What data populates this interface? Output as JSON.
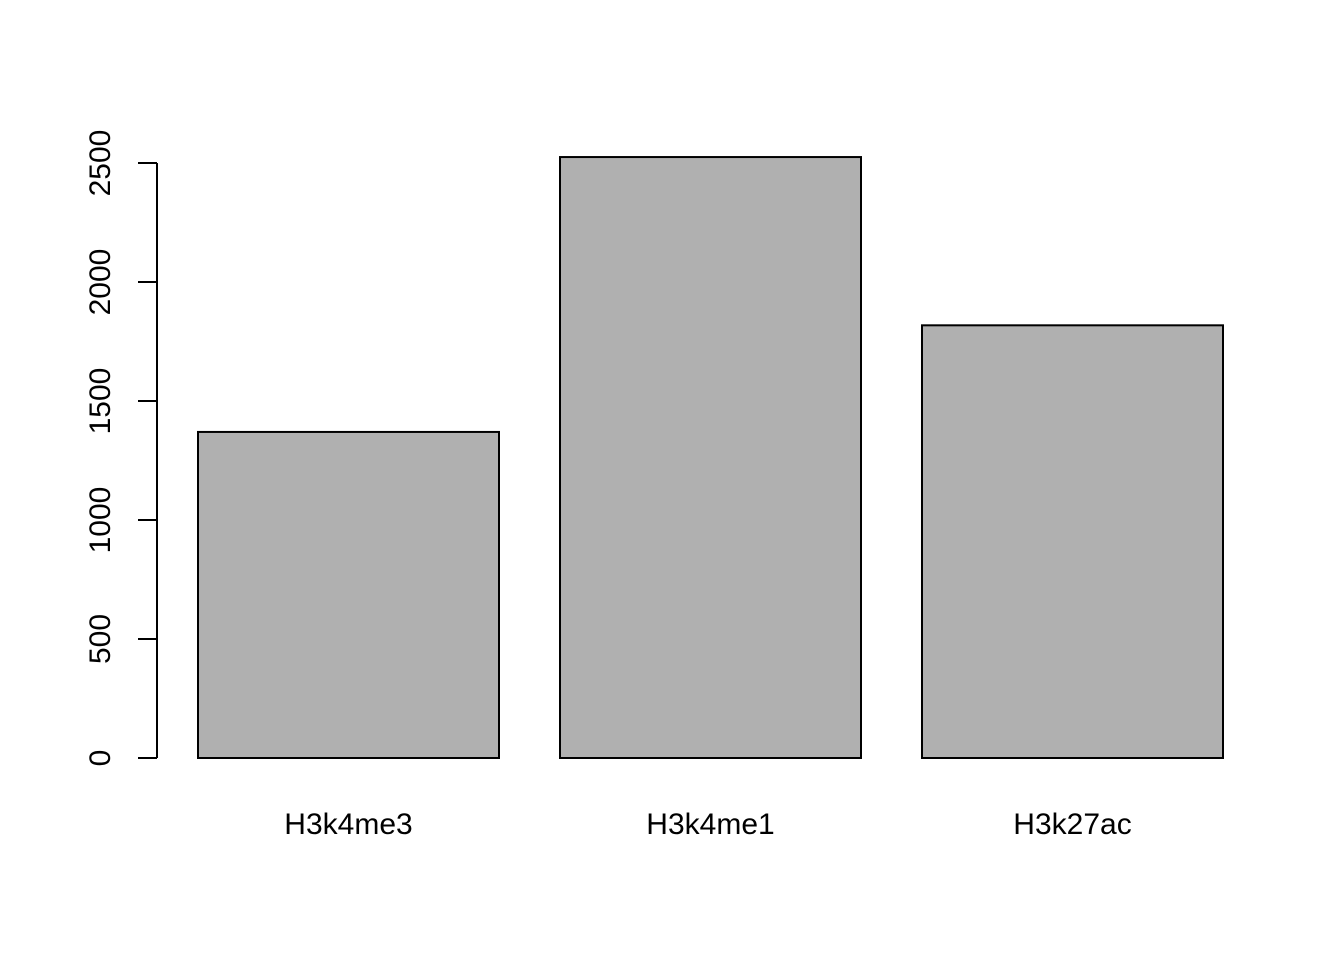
{
  "chart_data": {
    "type": "bar",
    "title": "",
    "xlabel": "",
    "ylabel": "",
    "categories": [
      "H3k4me3",
      "H3k4me1",
      "H3k27ac"
    ],
    "values": [
      1370,
      2525,
      1818
    ],
    "ylim": [
      0,
      2500
    ],
    "yticks": [
      0,
      500,
      1000,
      1500,
      2000,
      2500
    ],
    "ytick_labels": [
      "0",
      "500",
      "1000",
      "1500",
      "2000",
      "2500"
    ],
    "bar_color": "#b0b0b0",
    "border_color": "#000000",
    "grid": false,
    "legend": "none"
  }
}
